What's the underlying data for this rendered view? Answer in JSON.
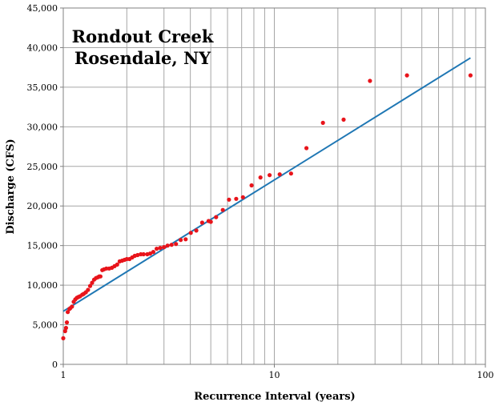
{
  "chart_data": {
    "type": "scatter",
    "title_lines": [
      "Rondout Creek",
      "Rosendale, NY"
    ],
    "xlabel": "Recurrence Interval (years)",
    "ylabel": "Discharge (CFS)",
    "x_scale": "log",
    "xlim": [
      1,
      100
    ],
    "ylim": [
      0,
      45000
    ],
    "x_tick_labels": [
      "1",
      "10",
      "100"
    ],
    "y_ticks": [
      0,
      5000,
      10000,
      15000,
      20000,
      25000,
      30000,
      35000,
      40000,
      45000
    ],
    "y_tick_labels": [
      "0",
      "5,000",
      "10,000",
      "15,000",
      "20,000",
      "25,000",
      "30,000",
      "35,000",
      "40,000",
      "45,000"
    ],
    "grid": true,
    "colors": {
      "points": "#e8141b",
      "fit_line": "#1f77b4",
      "grid": "#a6a6a6"
    },
    "series": [
      {
        "kind": "points",
        "x": [
          1.0,
          1.02,
          1.03,
          1.04,
          1.05,
          1.07,
          1.08,
          1.1,
          1.12,
          1.14,
          1.16,
          1.18,
          1.2,
          1.23,
          1.25,
          1.28,
          1.31,
          1.34,
          1.37,
          1.4,
          1.43,
          1.46,
          1.48,
          1.5,
          1.53,
          1.56,
          1.6,
          1.65,
          1.7,
          1.75,
          1.8,
          1.85,
          1.9,
          1.95,
          2.0,
          2.06,
          2.12,
          2.18,
          2.25,
          2.33,
          2.4,
          2.5,
          2.58,
          2.67,
          2.77,
          2.88,
          3.0,
          3.12,
          3.26,
          3.42,
          3.6,
          3.8,
          4.02,
          4.27,
          4.55,
          4.88,
          5.0,
          5.3,
          5.7,
          6.1,
          6.6,
          7.1,
          7.8,
          8.6,
          9.5,
          10.6,
          12.0,
          14.2,
          17.0,
          21.3,
          28.4,
          42.5,
          85.0
        ],
        "y": [
          3300,
          4200,
          4600,
          5300,
          6600,
          7000,
          7100,
          7300,
          7900,
          8200,
          8400,
          8500,
          8600,
          8800,
          8900,
          9100,
          9400,
          9900,
          10300,
          10700,
          10900,
          11000,
          11100,
          11100,
          11900,
          12000,
          12100,
          12100,
          12200,
          12400,
          12600,
          13000,
          13100,
          13200,
          13300,
          13300,
          13500,
          13700,
          13800,
          13900,
          13900,
          13900,
          14000,
          14200,
          14600,
          14700,
          14800,
          15000,
          15100,
          15200,
          15700,
          15800,
          16600,
          16900,
          17900,
          18100,
          18000,
          18600,
          19500,
          20800,
          20900,
          21100,
          22600,
          23600,
          23900,
          24000,
          24100,
          27300,
          30500,
          30900,
          35800,
          36500,
          36500
        ]
      },
      {
        "kind": "line",
        "x": [
          1,
          85
        ],
        "y": [
          6700,
          38700
        ]
      }
    ]
  }
}
